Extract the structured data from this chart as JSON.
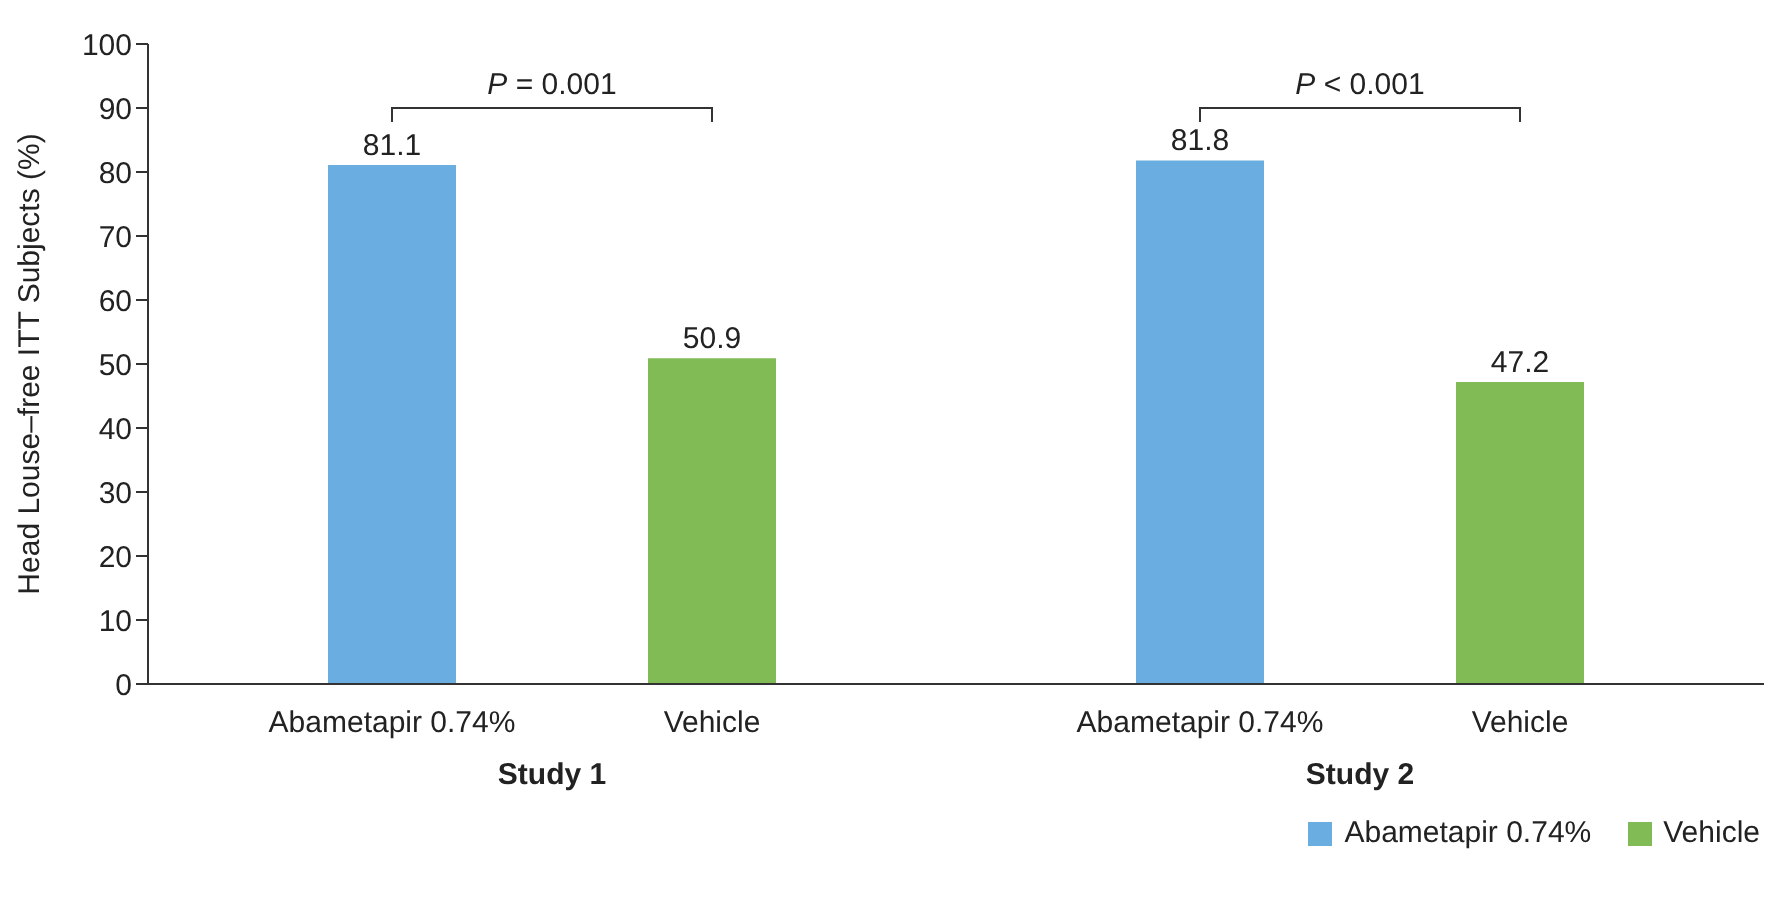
{
  "chart_data": {
    "type": "bar",
    "ylabel": "Head Louse–free ITT Subjects (%)",
    "categories": [
      "Study 1",
      "Study 2"
    ],
    "series": [
      {
        "name": "Abametapir 0.74%",
        "color": "#6aade0",
        "values": [
          81.1,
          81.8
        ]
      },
      {
        "name": "Vehicle",
        "color": "#80bb55",
        "values": [
          50.9,
          47.2
        ]
      }
    ],
    "ylim": [
      0,
      100
    ],
    "yticks": [
      0,
      10,
      20,
      30,
      40,
      50,
      60,
      70,
      80,
      90,
      100
    ],
    "grid": false,
    "legend": "bottom right",
    "data_labels": true,
    "annotations": [
      "P = 0.001",
      "P < 0.001"
    ]
  }
}
